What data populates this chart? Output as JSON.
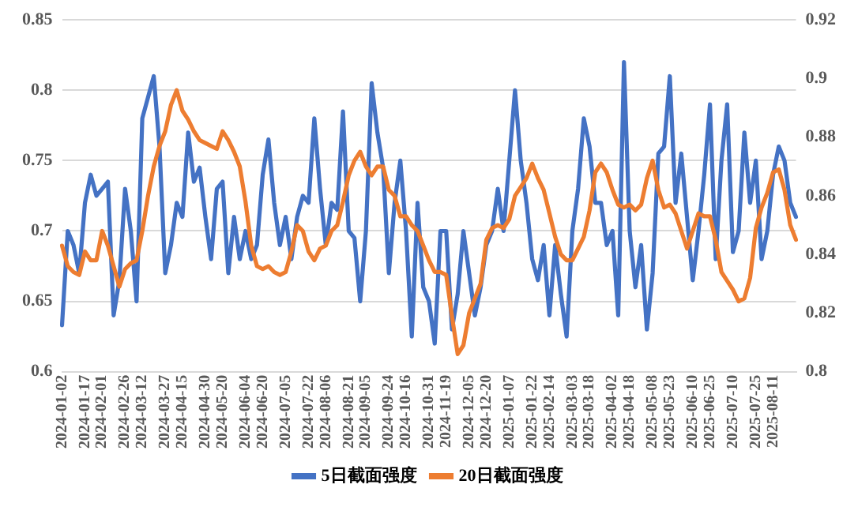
{
  "chart_data": {
    "type": "line",
    "categories": [
      "2024-01-02",
      null,
      null,
      null,
      "2024-01-17",
      null,
      null,
      "2024-02-01",
      null,
      null,
      null,
      "2024-02-26",
      null,
      null,
      "2024-03-12",
      null,
      null,
      null,
      "2024-03-27",
      null,
      null,
      "2024-04-15",
      null,
      null,
      null,
      "2024-04-30",
      null,
      null,
      "2024-05-20",
      null,
      null,
      null,
      "2024-06-04",
      null,
      null,
      "2024-06-20",
      null,
      null,
      null,
      "2024-07-05",
      null,
      null,
      null,
      "2024-07-22",
      null,
      null,
      "2024-08-06",
      null,
      null,
      null,
      "2024-08-21",
      null,
      null,
      "2024-09-05",
      null,
      null,
      null,
      "2024-09-24",
      null,
      null,
      "2024-10-16",
      null,
      null,
      null,
      "2024-10-31",
      null,
      null,
      "2024-11-19",
      null,
      null,
      null,
      "2024-12-05",
      null,
      null,
      "2024-12-20",
      null,
      null,
      null,
      "2025-01-07",
      null,
      null,
      null,
      "2025-01-22",
      null,
      null,
      "2025-02-14",
      null,
      null,
      null,
      "2025-03-03",
      null,
      null,
      "2025-03-18",
      null,
      null,
      null,
      "2025-04-02",
      null,
      null,
      "2025-04-18",
      null,
      null,
      null,
      "2025-05-08",
      null,
      null,
      "2025-05-23",
      null,
      null,
      null,
      "2025-06-10",
      null,
      null,
      "2025-06-25",
      null,
      null,
      null,
      "2025-07-10",
      null,
      null,
      null,
      "2025-07-25",
      null,
      null,
      "2025-08-11",
      null,
      null,
      null,
      null
    ],
    "series": [
      {
        "name": "5日截面强度",
        "color": "#4472c4",
        "values": [
          0.633,
          0.7,
          0.69,
          0.67,
          0.72,
          0.74,
          0.725,
          0.73,
          0.735,
          0.64,
          0.665,
          0.73,
          0.7,
          0.65,
          0.78,
          0.795,
          0.81,
          0.76,
          0.67,
          0.69,
          0.72,
          0.71,
          0.77,
          0.735,
          0.745,
          0.71,
          0.68,
          0.73,
          0.735,
          0.67,
          0.71,
          0.68,
          0.7,
          0.68,
          0.69,
          0.74,
          0.765,
          0.72,
          0.69,
          0.71,
          0.68,
          0.71,
          0.725,
          0.72,
          0.78,
          0.73,
          0.69,
          0.72,
          0.715,
          0.785,
          0.7,
          0.695,
          0.65,
          0.7,
          0.805,
          0.77,
          0.745,
          0.67,
          0.72,
          0.75,
          0.7,
          0.625,
          0.72,
          0.66,
          0.65,
          0.62,
          0.7,
          0.7,
          0.63,
          0.655,
          0.7,
          0.67,
          0.64,
          0.66,
          0.69,
          0.7,
          0.73,
          0.7,
          0.75,
          0.8,
          0.75,
          0.72,
          0.68,
          0.665,
          0.69,
          0.64,
          0.69,
          0.655,
          0.625,
          0.7,
          0.73,
          0.78,
          0.76,
          0.72,
          0.72,
          0.69,
          0.7,
          0.64,
          0.82,
          0.7,
          0.66,
          0.69,
          0.63,
          0.67,
          0.755,
          0.76,
          0.81,
          0.72,
          0.755,
          0.71,
          0.665,
          0.7,
          0.74,
          0.79,
          0.68,
          0.75,
          0.79,
          0.685,
          0.7,
          0.77,
          0.72,
          0.75,
          0.68,
          0.7,
          0.74,
          0.76,
          0.75,
          0.72,
          0.71
        ]
      },
      {
        "name": "20日截面强度",
        "color": "#ed7d31",
        "axis": "y2",
        "values": [
          0.843,
          0.836,
          0.834,
          0.833,
          0.841,
          0.838,
          0.838,
          0.848,
          0.843,
          0.836,
          0.829,
          0.835,
          0.837,
          0.838,
          0.848,
          0.86,
          0.87,
          0.877,
          0.882,
          0.891,
          0.896,
          0.889,
          0.886,
          0.882,
          0.879,
          0.878,
          0.877,
          0.876,
          0.882,
          0.879,
          0.875,
          0.87,
          0.858,
          0.843,
          0.836,
          0.835,
          0.836,
          0.834,
          0.833,
          0.834,
          0.841,
          0.85,
          0.848,
          0.841,
          0.838,
          0.842,
          0.843,
          0.848,
          0.85,
          0.858,
          0.867,
          0.872,
          0.875,
          0.87,
          0.867,
          0.87,
          0.87,
          0.862,
          0.86,
          0.853,
          0.853,
          0.85,
          0.848,
          0.843,
          0.838,
          0.834,
          0.834,
          0.833,
          0.819,
          0.806,
          0.809,
          0.82,
          0.825,
          0.83,
          0.845,
          0.849,
          0.85,
          0.849,
          0.852,
          0.86,
          0.863,
          0.866,
          0.871,
          0.866,
          0.862,
          0.854,
          0.846,
          0.84,
          0.838,
          0.838,
          0.842,
          0.846,
          0.855,
          0.868,
          0.871,
          0.868,
          0.862,
          0.857,
          0.856,
          0.857,
          0.855,
          0.857,
          0.866,
          0.872,
          0.862,
          0.856,
          0.857,
          0.854,
          0.848,
          0.842,
          0.848,
          0.854,
          0.853,
          0.853,
          0.845,
          0.834,
          0.831,
          0.828,
          0.824,
          0.825,
          0.832,
          0.849,
          0.856,
          0.861,
          0.868,
          0.869,
          0.862,
          0.85,
          0.845
        ]
      }
    ],
    "ylim": [
      0.6,
      0.85
    ],
    "yticks": [
      0.6,
      0.65,
      0.7,
      0.75,
      0.8,
      0.85
    ],
    "y2lim": [
      0.8,
      0.92
    ],
    "y2ticks": [
      0.8,
      0.82,
      0.84,
      0.86,
      0.88,
      0.9,
      0.92
    ],
    "grid": "y",
    "legend": "bottom",
    "marker": "none",
    "line_style": "solid"
  }
}
